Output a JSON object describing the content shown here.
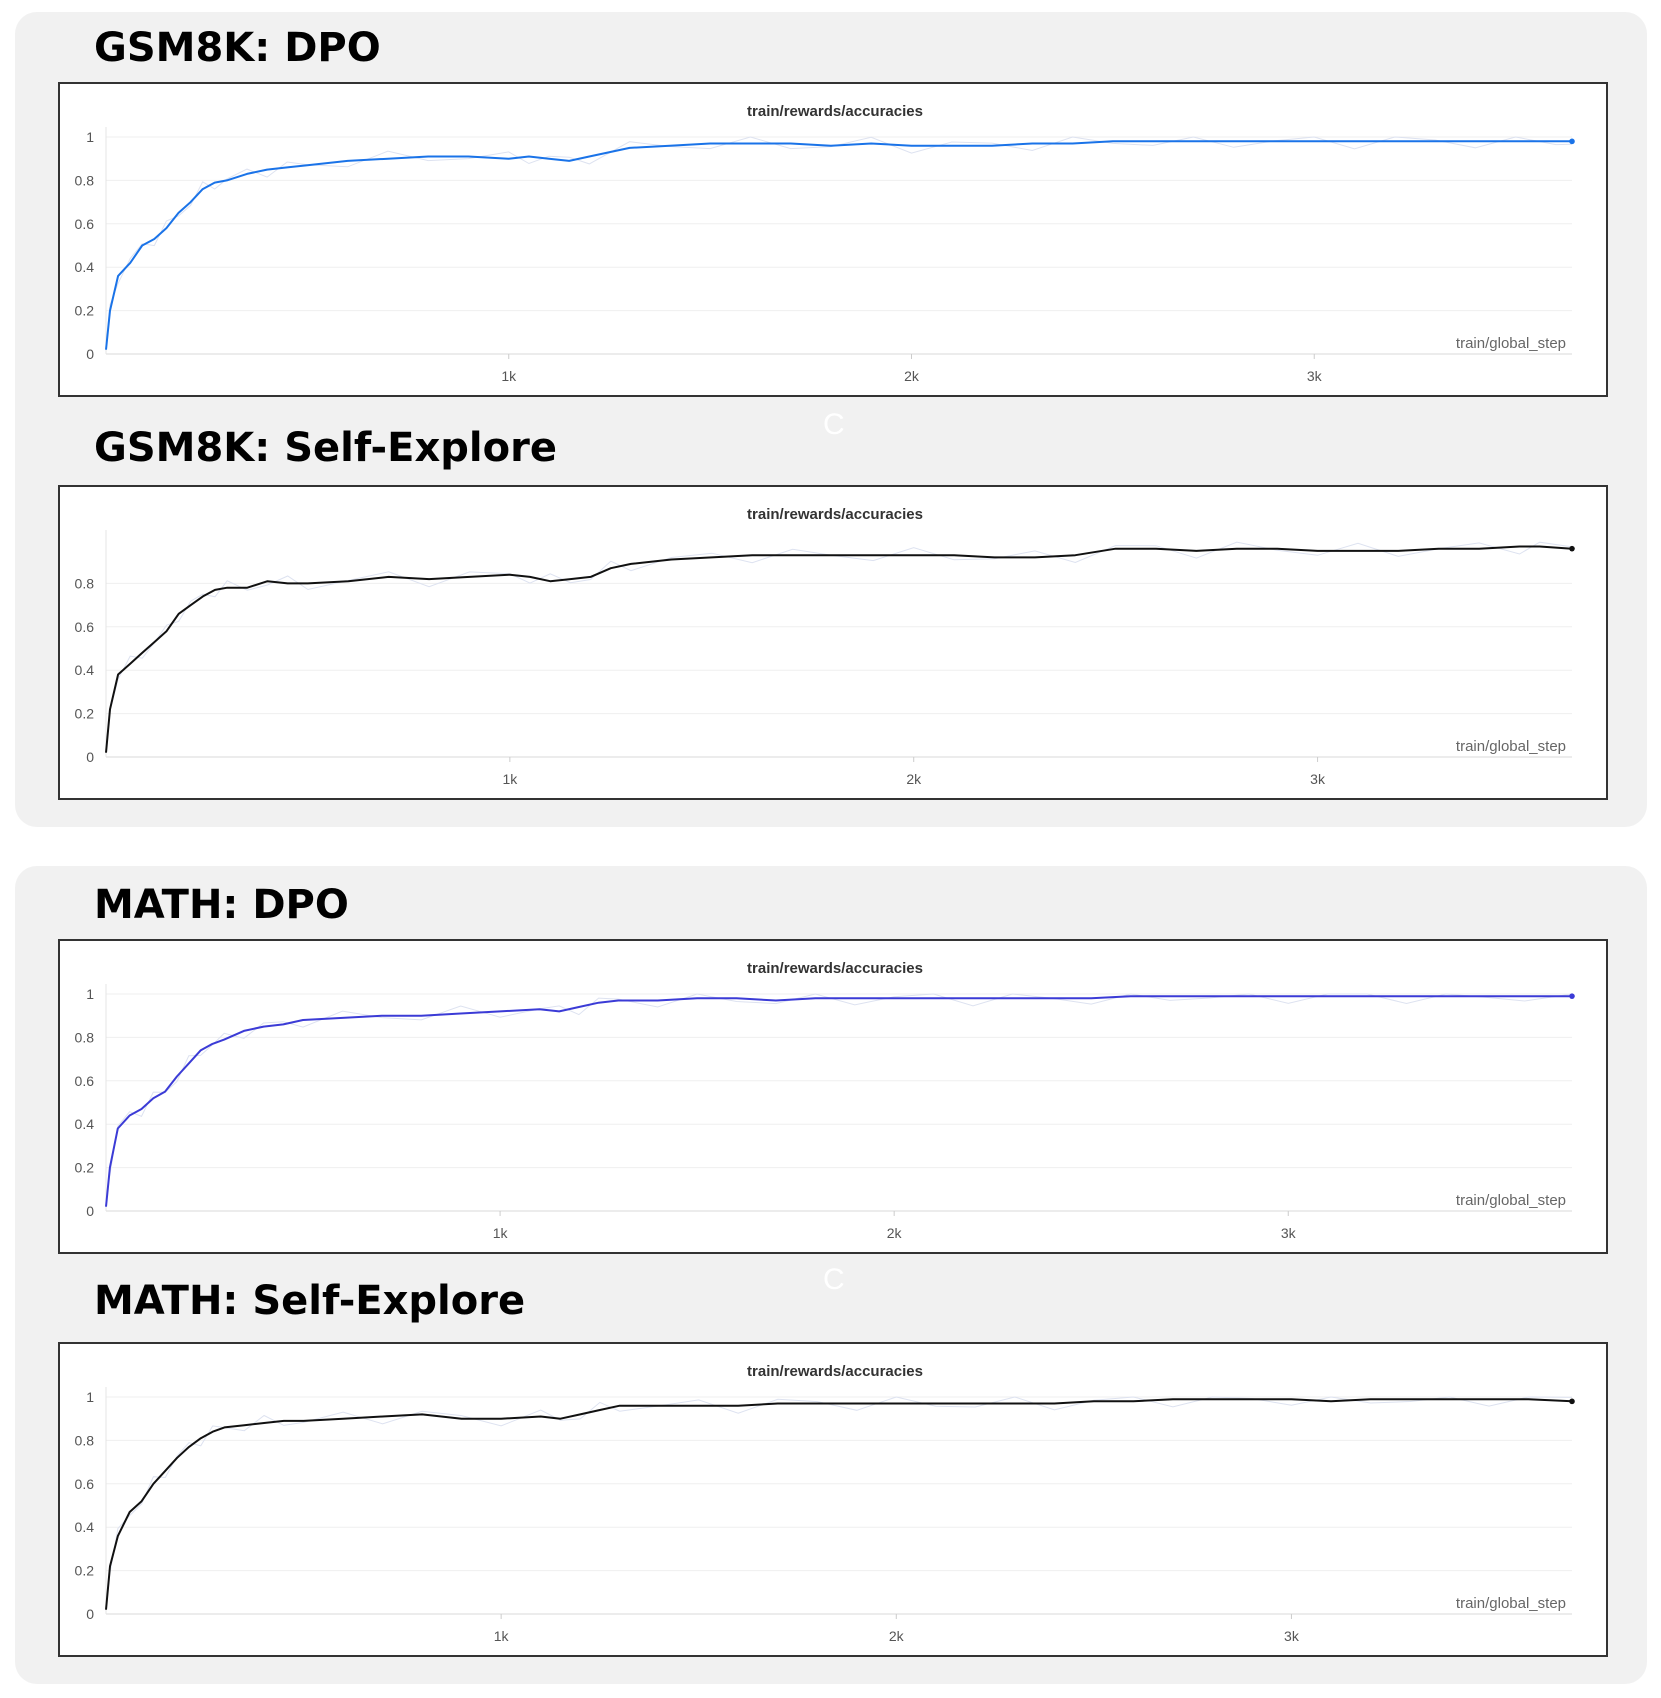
{
  "groups": [
    {
      "panels": [
        {
          "heading": "GSM8K: DPO",
          "ghost": "C"
        },
        {
          "heading": "GSM8K: Self-Explore",
          "ghost": ""
        }
      ]
    },
    {
      "panels": [
        {
          "heading": "MATH: DPO",
          "ghost": "C"
        },
        {
          "heading": "MATH: Self-Explore",
          "ghost": ""
        }
      ]
    }
  ],
  "chart_data": [
    {
      "type": "line",
      "title": "train/rewards/accuracies",
      "xlabel": "train/global_step",
      "xlim": [
        0,
        3640
      ],
      "ylim": [
        0,
        1
      ],
      "x_ticks": [
        {
          "value": 1000,
          "label": "1k"
        },
        {
          "value": 2000,
          "label": "2k"
        },
        {
          "value": 3000,
          "label": "3k"
        }
      ],
      "y_ticks": [
        {
          "value": 0,
          "label": "0"
        },
        {
          "value": 0.2,
          "label": "0.2"
        },
        {
          "value": 0.4,
          "label": "0.4"
        },
        {
          "value": 0.6,
          "label": "0.6"
        },
        {
          "value": 0.8,
          "label": "0.8"
        },
        {
          "value": 1,
          "label": "1"
        }
      ],
      "grid": true,
      "series": [
        {
          "color": "#1a73e8",
          "x": [
            0,
            10,
            30,
            60,
            90,
            120,
            150,
            180,
            210,
            240,
            270,
            300,
            350,
            400,
            450,
            500,
            600,
            700,
            800,
            900,
            1000,
            1050,
            1100,
            1150,
            1200,
            1300,
            1400,
            1500,
            1600,
            1700,
            1800,
            1900,
            2000,
            2100,
            2200,
            2300,
            2400,
            2500,
            2600,
            2700,
            2800,
            2900,
            3000,
            3100,
            3200,
            3300,
            3400,
            3500,
            3600,
            3640
          ],
          "y": [
            0.02,
            0.2,
            0.36,
            0.42,
            0.5,
            0.53,
            0.58,
            0.65,
            0.7,
            0.76,
            0.79,
            0.8,
            0.83,
            0.85,
            0.86,
            0.87,
            0.89,
            0.9,
            0.91,
            0.91,
            0.9,
            0.91,
            0.9,
            0.89,
            0.91,
            0.95,
            0.96,
            0.97,
            0.97,
            0.97,
            0.96,
            0.97,
            0.96,
            0.96,
            0.96,
            0.97,
            0.97,
            0.98,
            0.98,
            0.98,
            0.98,
            0.98,
            0.98,
            0.98,
            0.98,
            0.98,
            0.98,
            0.98,
            0.98,
            0.98
          ]
        }
      ]
    },
    {
      "type": "line",
      "title": "train/rewards/accuracies",
      "xlabel": "train/global_step",
      "xlim": [
        0,
        3630
      ],
      "ylim": [
        0,
        1
      ],
      "x_ticks": [
        {
          "value": 1000,
          "label": "1k"
        },
        {
          "value": 2000,
          "label": "2k"
        },
        {
          "value": 3000,
          "label": "3k"
        }
      ],
      "y_ticks": [
        {
          "value": 0,
          "label": "0"
        },
        {
          "value": 0.2,
          "label": "0.2"
        },
        {
          "value": 0.4,
          "label": "0.4"
        },
        {
          "value": 0.6,
          "label": "0.6"
        },
        {
          "value": 0.8,
          "label": "0.8"
        }
      ],
      "grid": true,
      "series": [
        {
          "color": "#111111",
          "x": [
            0,
            10,
            30,
            60,
            90,
            120,
            150,
            180,
            210,
            240,
            270,
            300,
            350,
            400,
            450,
            500,
            600,
            700,
            800,
            900,
            1000,
            1050,
            1100,
            1150,
            1200,
            1250,
            1300,
            1400,
            1500,
            1600,
            1700,
            1800,
            1900,
            2000,
            2100,
            2200,
            2300,
            2400,
            2500,
            2600,
            2700,
            2800,
            2900,
            3000,
            3100,
            3200,
            3300,
            3400,
            3500,
            3550,
            3630
          ],
          "y": [
            0.02,
            0.22,
            0.38,
            0.43,
            0.48,
            0.53,
            0.58,
            0.66,
            0.7,
            0.74,
            0.77,
            0.78,
            0.78,
            0.81,
            0.8,
            0.8,
            0.81,
            0.83,
            0.82,
            0.83,
            0.84,
            0.83,
            0.81,
            0.82,
            0.83,
            0.87,
            0.89,
            0.91,
            0.92,
            0.93,
            0.93,
            0.93,
            0.93,
            0.93,
            0.93,
            0.92,
            0.92,
            0.93,
            0.96,
            0.96,
            0.95,
            0.96,
            0.96,
            0.95,
            0.95,
            0.95,
            0.96,
            0.96,
            0.97,
            0.97,
            0.96
          ]
        }
      ]
    },
    {
      "type": "line",
      "title": "train/rewards/accuracies",
      "xlabel": "train/global_step",
      "xlim": [
        0,
        3720
      ],
      "ylim": [
        0,
        1
      ],
      "x_ticks": [
        {
          "value": 1000,
          "label": "1k"
        },
        {
          "value": 2000,
          "label": "2k"
        },
        {
          "value": 3000,
          "label": "3k"
        }
      ],
      "y_ticks": [
        {
          "value": 0,
          "label": "0"
        },
        {
          "value": 0.2,
          "label": "0.2"
        },
        {
          "value": 0.4,
          "label": "0.4"
        },
        {
          "value": 0.6,
          "label": "0.6"
        },
        {
          "value": 0.8,
          "label": "0.8"
        },
        {
          "value": 1,
          "label": "1"
        }
      ],
      "grid": true,
      "series": [
        {
          "color": "#3b3bd6",
          "x": [
            0,
            10,
            30,
            60,
            90,
            120,
            150,
            180,
            210,
            240,
            270,
            300,
            350,
            400,
            450,
            500,
            600,
            700,
            800,
            900,
            1000,
            1100,
            1150,
            1200,
            1250,
            1300,
            1400,
            1500,
            1600,
            1700,
            1800,
            1900,
            2000,
            2100,
            2200,
            2300,
            2400,
            2500,
            2600,
            2700,
            2800,
            2900,
            3000,
            3100,
            3200,
            3300,
            3400,
            3500,
            3600,
            3720
          ],
          "y": [
            0.02,
            0.2,
            0.38,
            0.44,
            0.47,
            0.52,
            0.55,
            0.62,
            0.68,
            0.74,
            0.77,
            0.79,
            0.83,
            0.85,
            0.86,
            0.88,
            0.89,
            0.9,
            0.9,
            0.91,
            0.92,
            0.93,
            0.92,
            0.94,
            0.96,
            0.97,
            0.97,
            0.98,
            0.98,
            0.97,
            0.98,
            0.98,
            0.98,
            0.98,
            0.98,
            0.98,
            0.98,
            0.98,
            0.99,
            0.99,
            0.99,
            0.99,
            0.99,
            0.99,
            0.99,
            0.99,
            0.99,
            0.99,
            0.99,
            0.99
          ]
        }
      ]
    },
    {
      "type": "line",
      "title": "train/rewards/accuracies",
      "xlabel": "train/global_step",
      "xlim": [
        0,
        3710
      ],
      "ylim": [
        0,
        1
      ],
      "x_ticks": [
        {
          "value": 1000,
          "label": "1k"
        },
        {
          "value": 2000,
          "label": "2k"
        },
        {
          "value": 3000,
          "label": "3k"
        }
      ],
      "y_ticks": [
        {
          "value": 0,
          "label": "0"
        },
        {
          "value": 0.2,
          "label": "0.2"
        },
        {
          "value": 0.4,
          "label": "0.4"
        },
        {
          "value": 0.6,
          "label": "0.6"
        },
        {
          "value": 0.8,
          "label": "0.8"
        },
        {
          "value": 1,
          "label": "1"
        }
      ],
      "grid": true,
      "series": [
        {
          "color": "#111111",
          "x": [
            0,
            10,
            30,
            60,
            90,
            120,
            150,
            180,
            210,
            240,
            270,
            300,
            350,
            400,
            450,
            500,
            600,
            700,
            800,
            900,
            1000,
            1100,
            1150,
            1200,
            1250,
            1300,
            1400,
            1500,
            1600,
            1700,
            1800,
            1900,
            2000,
            2100,
            2200,
            2300,
            2400,
            2500,
            2600,
            2700,
            2800,
            2900,
            3000,
            3100,
            3200,
            3300,
            3400,
            3500,
            3600,
            3710
          ],
          "y": [
            0.02,
            0.22,
            0.36,
            0.47,
            0.52,
            0.6,
            0.66,
            0.72,
            0.77,
            0.81,
            0.84,
            0.86,
            0.87,
            0.88,
            0.89,
            0.89,
            0.9,
            0.91,
            0.92,
            0.9,
            0.9,
            0.91,
            0.9,
            0.92,
            0.94,
            0.96,
            0.96,
            0.96,
            0.96,
            0.97,
            0.97,
            0.97,
            0.97,
            0.97,
            0.97,
            0.97,
            0.97,
            0.98,
            0.98,
            0.99,
            0.99,
            0.99,
            0.99,
            0.98,
            0.99,
            0.99,
            0.99,
            0.99,
            0.99,
            0.98
          ]
        }
      ]
    }
  ]
}
